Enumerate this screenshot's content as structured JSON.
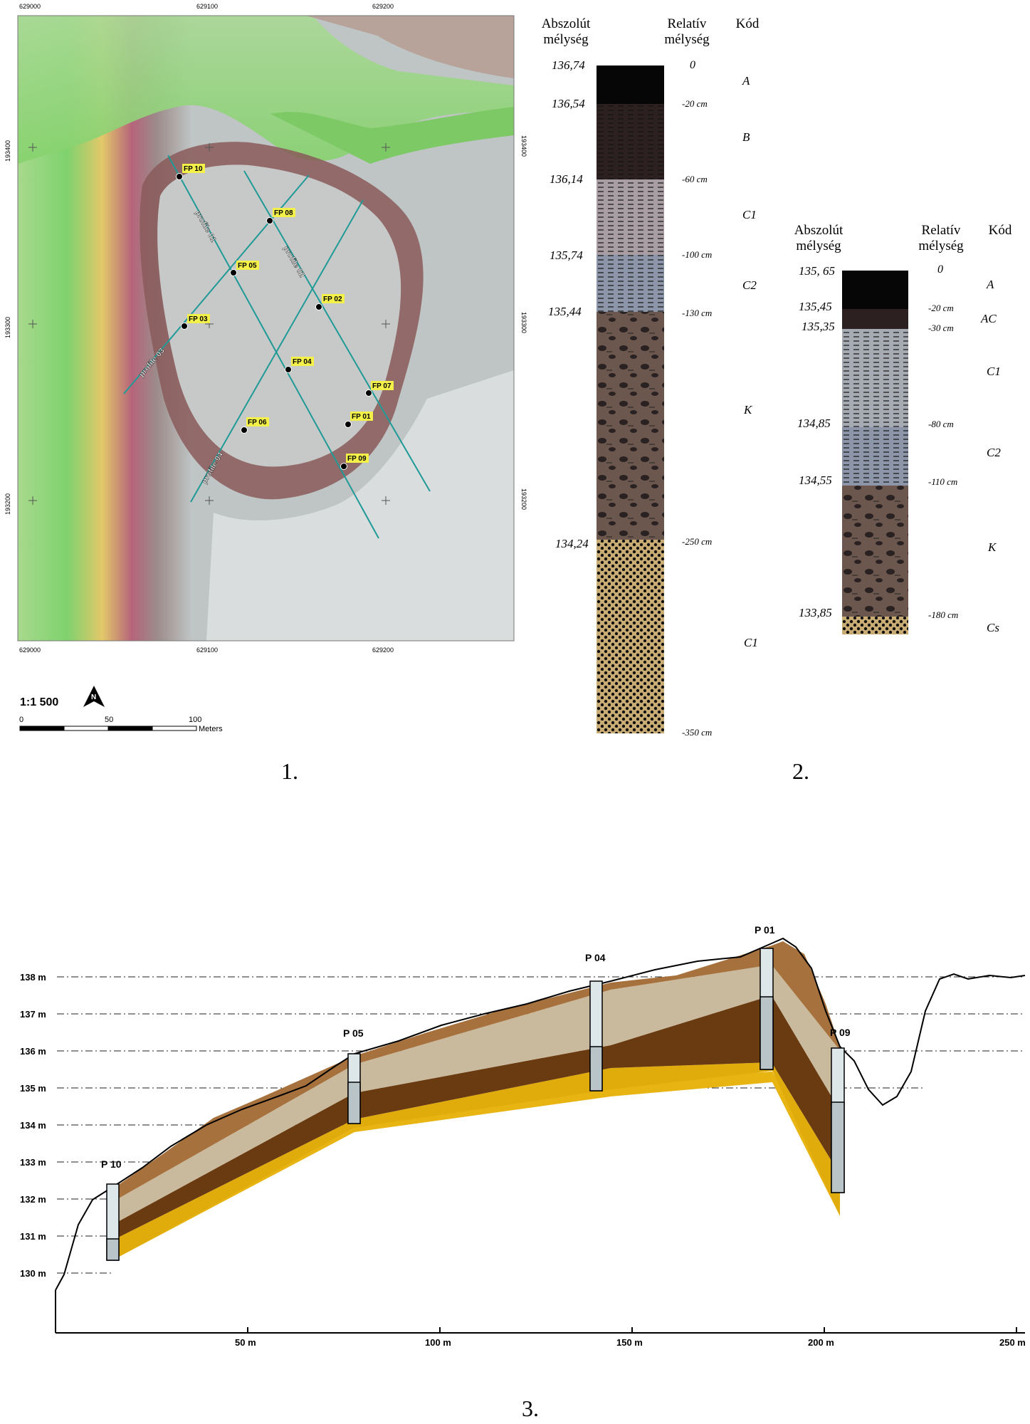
{
  "fig1": {
    "number": "1.",
    "coords_top": [
      "629000",
      "629100",
      "629200"
    ],
    "coords_bottom": [
      "629000",
      "629100",
      "629200"
    ],
    "coords_left": [
      "193400",
      "193300",
      "193200"
    ],
    "coords_right": [
      "193400",
      "193300",
      "193200"
    ],
    "points": [
      "FP 10",
      "FP 08",
      "FP 05",
      "FP 02",
      "FP 03",
      "FP 04",
      "FP 07",
      "FP 01",
      "FP 06",
      "FP 09"
    ],
    "profiles": [
      "profile 01",
      "profile 02",
      "profile 03",
      "profile 04"
    ],
    "scale_ratio": "1:1 500",
    "scalebar_ticks": [
      "0",
      "50",
      "100"
    ],
    "scalebar_unit": "Meters"
  },
  "core1": {
    "header_abs": "Abszolút mélység",
    "header_rel": "Relatív mélység",
    "header_code": "Kód",
    "abs_depths": [
      "136,74",
      "136,54",
      "136,14",
      "135,74",
      "135,44",
      "134,24"
    ],
    "rel_depths": [
      "0",
      "-20 cm",
      "-60 cm",
      "-100 cm",
      "-130 cm",
      "-250 cm",
      "-350 cm"
    ],
    "codes": [
      "A",
      "B",
      "C1",
      "C2",
      "K",
      "C1"
    ]
  },
  "core2": {
    "header_abs": "Abszolút mélység",
    "header_rel": "Relatív mélység",
    "header_code": "Kód",
    "number": "2.",
    "abs_depths": [
      "135, 65",
      "135,45",
      "135,35",
      "134,85",
      "134,55",
      "133,85"
    ],
    "rel_depths": [
      "0",
      "-20 cm",
      "-30 cm",
      "-80 cm",
      "-110 cm",
      "-180 cm"
    ],
    "codes": [
      "A",
      "AC",
      "C1",
      "C2",
      "K",
      "Cs"
    ]
  },
  "fig3": {
    "number": "3.",
    "y_labels": [
      "138 m",
      "137 m",
      "136 m",
      "135 m",
      "134 m",
      "133 m",
      "132 m",
      "131 m",
      "130 m"
    ],
    "x_labels": [
      "50 m",
      "100 m",
      "150 m",
      "200 m",
      "250 m"
    ],
    "boreholes": [
      "P 10",
      "P 05",
      "P 04",
      "P 01",
      "P 09"
    ]
  }
}
